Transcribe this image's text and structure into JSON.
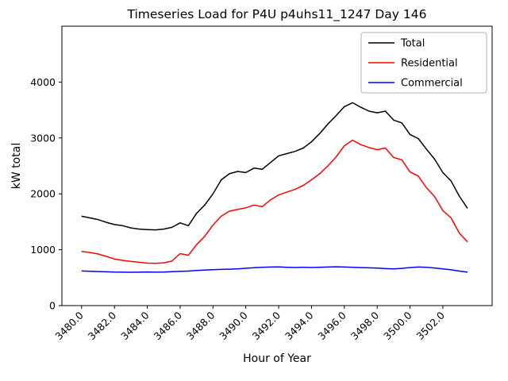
{
  "chart_data": {
    "type": "line",
    "title": "Timeseries Load for P4U p4uhs11_1247  Day 146",
    "xlabel": "Hour of Year",
    "ylabel": "kW total",
    "xlim": [
      3478.8,
      3505.0
    ],
    "ylim": [
      0,
      5000
    ],
    "grid": false,
    "legend_position": "upper right",
    "xticks": [
      3480,
      3482,
      3484,
      3486,
      3488,
      3490,
      3492,
      3494,
      3496,
      3498,
      3500,
      3502
    ],
    "xtick_labels": [
      "3480.0",
      "3482.0",
      "3484.0",
      "3486.0",
      "3488.0",
      "3490.0",
      "3492.0",
      "3494.0",
      "3496.0",
      "3498.0",
      "3500.0",
      "3502.0"
    ],
    "yticks": [
      0,
      1000,
      2000,
      3000,
      4000
    ],
    "ytick_labels": [
      "0",
      "1000",
      "2000",
      "3000",
      "4000"
    ],
    "x": [
      3480.0,
      3480.5,
      3481.0,
      3481.5,
      3482.0,
      3482.5,
      3483.0,
      3483.5,
      3484.0,
      3484.5,
      3485.0,
      3485.5,
      3486.0,
      3486.5,
      3487.0,
      3487.5,
      3488.0,
      3488.5,
      3489.0,
      3489.5,
      3490.0,
      3490.5,
      3491.0,
      3491.5,
      3492.0,
      3492.5,
      3493.0,
      3493.5,
      3494.0,
      3494.5,
      3495.0,
      3495.5,
      3496.0,
      3496.5,
      3497.0,
      3497.5,
      3498.0,
      3498.5,
      3499.0,
      3499.5,
      3500.0,
      3500.5,
      3501.0,
      3501.5,
      3502.0,
      3502.5,
      3503.0,
      3503.5
    ],
    "series": [
      {
        "name": "Total",
        "color": "#000000",
        "values": [
          1600,
          1570,
          1540,
          1490,
          1450,
          1430,
          1390,
          1370,
          1360,
          1355,
          1370,
          1400,
          1480,
          1430,
          1650,
          1800,
          2000,
          2250,
          2360,
          2400,
          2380,
          2460,
          2440,
          2560,
          2680,
          2720,
          2760,
          2820,
          2930,
          3080,
          3250,
          3400,
          3560,
          3630,
          3550,
          3480,
          3450,
          3480,
          3320,
          3270,
          3060,
          2990,
          2800,
          2620,
          2380,
          2230,
          1960,
          1740
        ]
      },
      {
        "name": "Residential",
        "color": "#ff0000",
        "values": [
          970,
          950,
          925,
          880,
          835,
          810,
          790,
          775,
          760,
          755,
          765,
          795,
          930,
          900,
          1090,
          1240,
          1440,
          1600,
          1690,
          1720,
          1750,
          1800,
          1770,
          1890,
          1980,
          2030,
          2080,
          2150,
          2250,
          2360,
          2500,
          2660,
          2860,
          2960,
          2880,
          2830,
          2790,
          2820,
          2650,
          2610,
          2390,
          2320,
          2110,
          1950,
          1700,
          1570,
          1300,
          1140
        ]
      },
      {
        "name": "Commercial",
        "color": "#0000ff",
        "values": [
          620,
          615,
          610,
          605,
          600,
          598,
          596,
          598,
          602,
          598,
          600,
          606,
          612,
          618,
          628,
          636,
          642,
          648,
          652,
          658,
          668,
          678,
          686,
          690,
          692,
          686,
          682,
          686,
          682,
          686,
          690,
          694,
          690,
          686,
          680,
          676,
          670,
          662,
          656,
          666,
          680,
          690,
          686,
          674,
          658,
          640,
          618,
          598
        ]
      }
    ]
  }
}
